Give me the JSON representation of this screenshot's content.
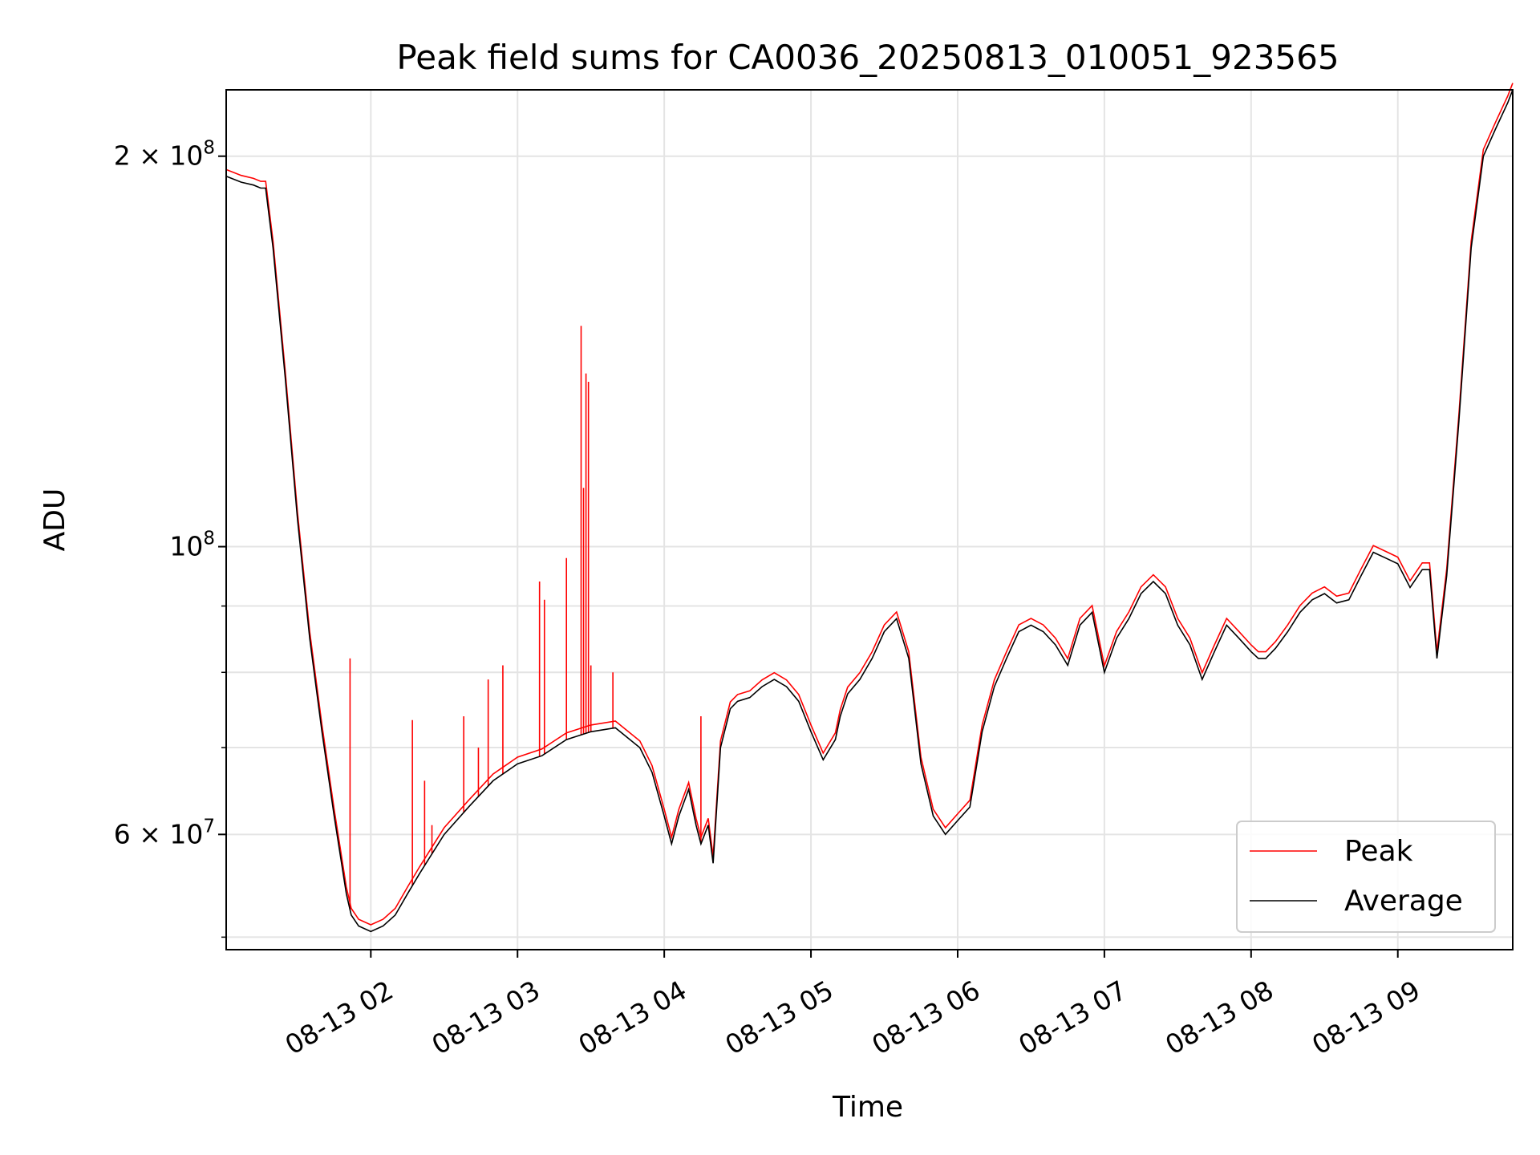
{
  "chart_data": {
    "type": "line",
    "title": "Peak field sums for CA0036_20250813_010051_923565",
    "xlabel": "Time",
    "ylabel": "ADU",
    "yscale": "log",
    "ylim": [
      48900000,
      225000000
    ],
    "xlim": [
      "2025-08-13 01:00:51",
      "2025-08-13 09:47:00"
    ],
    "grid": true,
    "legend_position": "lower-right",
    "x_ticks": [
      {
        "value": "2025-08-13 02:00",
        "label": "08-13 02"
      },
      {
        "value": "2025-08-13 03:00",
        "label": "08-13 03"
      },
      {
        "value": "2025-08-13 04:00",
        "label": "08-13 04"
      },
      {
        "value": "2025-08-13 05:00",
        "label": "08-13 05"
      },
      {
        "value": "2025-08-13 06:00",
        "label": "08-13 06"
      },
      {
        "value": "2025-08-13 07:00",
        "label": "08-13 07"
      },
      {
        "value": "2025-08-13 08:00",
        "label": "08-13 08"
      },
      {
        "value": "2025-08-13 09:00",
        "label": "08-13 09"
      }
    ],
    "y_major_ticks": [
      {
        "value": 60000000,
        "base": "6 × 10",
        "exp": "7"
      },
      {
        "value": 100000000,
        "base": "10",
        "exp": "8"
      },
      {
        "value": 200000000,
        "base": "2 × 10",
        "exp": "8"
      }
    ],
    "y_minor_ticks": [
      50000000,
      70000000,
      80000000,
      90000000
    ],
    "series": [
      {
        "name": "Average",
        "color": "#000000",
        "x": [
          "2025-08-13 01:00:51",
          "2025-08-13 01:07",
          "2025-08-13 01:12",
          "2025-08-13 01:15",
          "2025-08-13 01:17",
          "2025-08-13 01:20",
          "2025-08-13 01:25",
          "2025-08-13 01:30",
          "2025-08-13 01:35",
          "2025-08-13 01:40",
          "2025-08-13 01:45",
          "2025-08-13 01:50",
          "2025-08-13 01:52",
          "2025-08-13 01:55",
          "2025-08-13 02:00",
          "2025-08-13 02:05",
          "2025-08-13 02:10",
          "2025-08-13 02:15",
          "2025-08-13 02:20",
          "2025-08-13 02:30",
          "2025-08-13 02:40",
          "2025-08-13 02:50",
          "2025-08-13 03:00",
          "2025-08-13 03:10",
          "2025-08-13 03:20",
          "2025-08-13 03:30",
          "2025-08-13 03:40",
          "2025-08-13 03:50",
          "2025-08-13 03:55",
          "2025-08-13 04:00",
          "2025-08-13 04:03",
          "2025-08-13 04:06",
          "2025-08-13 04:10",
          "2025-08-13 04:13",
          "2025-08-13 04:15",
          "2025-08-13 04:18",
          "2025-08-13 04:20",
          "2025-08-13 04:23",
          "2025-08-13 04:27",
          "2025-08-13 04:30",
          "2025-08-13 04:35",
          "2025-08-13 04:40",
          "2025-08-13 04:45",
          "2025-08-13 04:50",
          "2025-08-13 04:55",
          "2025-08-13 05:00",
          "2025-08-13 05:05",
          "2025-08-13 05:10",
          "2025-08-13 05:12",
          "2025-08-13 05:15",
          "2025-08-13 05:20",
          "2025-08-13 05:25",
          "2025-08-13 05:30",
          "2025-08-13 05:35",
          "2025-08-13 05:40",
          "2025-08-13 05:45",
          "2025-08-13 05:50",
          "2025-08-13 05:55",
          "2025-08-13 06:00",
          "2025-08-13 06:05",
          "2025-08-13 06:10",
          "2025-08-13 06:15",
          "2025-08-13 06:20",
          "2025-08-13 06:25",
          "2025-08-13 06:30",
          "2025-08-13 06:35",
          "2025-08-13 06:40",
          "2025-08-13 06:45",
          "2025-08-13 06:50",
          "2025-08-13 06:55",
          "2025-08-13 07:00",
          "2025-08-13 07:05",
          "2025-08-13 07:10",
          "2025-08-13 07:15",
          "2025-08-13 07:20",
          "2025-08-13 07:25",
          "2025-08-13 07:30",
          "2025-08-13 07:35",
          "2025-08-13 07:40",
          "2025-08-13 07:45",
          "2025-08-13 07:50",
          "2025-08-13 07:55",
          "2025-08-13 08:00",
          "2025-08-13 08:03",
          "2025-08-13 08:06",
          "2025-08-13 08:10",
          "2025-08-13 08:15",
          "2025-08-13 08:20",
          "2025-08-13 08:25",
          "2025-08-13 08:30",
          "2025-08-13 08:35",
          "2025-08-13 08:40",
          "2025-08-13 08:45",
          "2025-08-13 08:50",
          "2025-08-13 08:55",
          "2025-08-13 09:00",
          "2025-08-13 09:05",
          "2025-08-13 09:10",
          "2025-08-13 09:13",
          "2025-08-13 09:16",
          "2025-08-13 09:20",
          "2025-08-13 09:25",
          "2025-08-13 09:30",
          "2025-08-13 09:35",
          "2025-08-13 09:40",
          "2025-08-13 09:45",
          "2025-08-13 09:47"
        ],
        "values": [
          193000000,
          191000000,
          190000000,
          189000000,
          189000000,
          170000000,
          135000000,
          105000000,
          85000000,
          72000000,
          62000000,
          54000000,
          52000000,
          51000000,
          50500000,
          51000000,
          52000000,
          54000000,
          56000000,
          60000000,
          63000000,
          66000000,
          68000000,
          69000000,
          71000000,
          72000000,
          72500000,
          70000000,
          67000000,
          62000000,
          59000000,
          62000000,
          65000000,
          61000000,
          59000000,
          61000000,
          57000000,
          70000000,
          75000000,
          76000000,
          76500000,
          78000000,
          79000000,
          78000000,
          76000000,
          72000000,
          68500000,
          71000000,
          74000000,
          77000000,
          79000000,
          82000000,
          86000000,
          88000000,
          82000000,
          68000000,
          62000000,
          60000000,
          61500000,
          63000000,
          72000000,
          78000000,
          82000000,
          86000000,
          87000000,
          86000000,
          84000000,
          81000000,
          87000000,
          89000000,
          80000000,
          85000000,
          88000000,
          92000000,
          94000000,
          92000000,
          87000000,
          84000000,
          79000000,
          83000000,
          87000000,
          85000000,
          83000000,
          82000000,
          82000000,
          83500000,
          86000000,
          89000000,
          91000000,
          92000000,
          90500000,
          91000000,
          95000000,
          99000000,
          98000000,
          97000000,
          93000000,
          96000000,
          96000000,
          82000000,
          95000000,
          125000000,
          170000000,
          200000000,
          210000000,
          220000000,
          225000000
        ]
      },
      {
        "name": "Peak",
        "color": "#ff0000",
        "x": [
          "2025-08-13 01:51:30",
          "2025-08-13 02:17",
          "2025-08-13 02:22",
          "2025-08-13 02:25",
          "2025-08-13 02:38",
          "2025-08-13 02:44",
          "2025-08-13 02:48",
          "2025-08-13 02:54",
          "2025-08-13 03:09",
          "2025-08-13 03:11",
          "2025-08-13 03:20",
          "2025-08-13 03:26",
          "2025-08-13 03:27",
          "2025-08-13 03:28",
          "2025-08-13 03:29",
          "2025-08-13 03:30",
          "2025-08-13 03:39",
          "2025-08-13 04:15"
        ],
        "values": [
          82000000,
          73500000,
          66000000,
          61000000,
          74000000,
          70000000,
          79000000,
          81000000,
          94000000,
          91000000,
          98000000,
          148000000,
          111000000,
          136000000,
          134000000,
          81000000,
          80000000,
          74000000
        ]
      }
    ]
  }
}
